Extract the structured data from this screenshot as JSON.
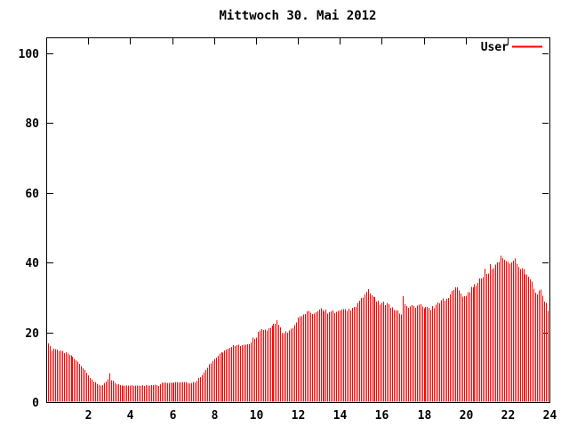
{
  "title": "Mittwoch 30. Mai 2012",
  "legend": {
    "label": "User",
    "color": "#ff0000",
    "position": "top-right"
  },
  "colors": {
    "background": "#ffffff",
    "bar": "#ff0000",
    "axis": "#000000",
    "text": "#000000"
  },
  "chart_data": {
    "type": "bar",
    "style": "impulses",
    "title": "Mittwoch 30. Mai 2012",
    "xlabel": "",
    "ylabel": "",
    "xlim": [
      0,
      24
    ],
    "ylim": [
      0,
      104
    ],
    "x_ticks": [
      2,
      4,
      6,
      8,
      10,
      12,
      14,
      16,
      18,
      20,
      22,
      24
    ],
    "y_ticks": [
      0,
      20,
      40,
      60,
      80,
      100
    ],
    "grid": false,
    "legend_position": "top-right",
    "sample_interval_minutes": 5,
    "series": [
      {
        "name": "User",
        "color": "#ff0000",
        "points": [
          [
            0.08,
            17.0
          ],
          [
            0.17,
            15.8
          ],
          [
            0.25,
            14.6
          ],
          [
            0.33,
            15.0
          ],
          [
            0.42,
            15.2
          ],
          [
            0.5,
            15.0
          ],
          [
            0.58,
            14.7
          ],
          [
            0.67,
            15.0
          ],
          [
            0.75,
            14.8
          ],
          [
            0.83,
            14.3
          ],
          [
            0.92,
            14.1
          ],
          [
            1.0,
            14.0
          ],
          [
            1.17,
            13.2
          ],
          [
            1.33,
            12.4
          ],
          [
            1.5,
            11.5
          ],
          [
            1.67,
            10.2
          ],
          [
            1.83,
            9.3
          ],
          [
            1.92,
            8.5
          ],
          [
            2.0,
            7.5
          ],
          [
            2.08,
            6.9
          ],
          [
            2.17,
            6.4
          ],
          [
            2.25,
            6.0
          ],
          [
            2.33,
            5.8
          ],
          [
            2.42,
            5.2
          ],
          [
            2.5,
            4.9
          ],
          [
            2.58,
            4.8
          ],
          [
            2.67,
            4.9
          ],
          [
            2.75,
            5.4
          ],
          [
            2.83,
            5.9
          ],
          [
            2.92,
            6.6
          ],
          [
            3.0,
            8.5
          ],
          [
            3.08,
            6.4
          ],
          [
            3.17,
            6.0
          ],
          [
            3.25,
            5.5
          ],
          [
            3.33,
            5.2
          ],
          [
            3.42,
            5.0
          ],
          [
            3.5,
            4.8
          ],
          [
            3.58,
            4.7
          ],
          [
            4.0,
            4.7
          ],
          [
            4.5,
            4.7
          ],
          [
            5.0,
            4.7
          ],
          [
            5.08,
            4.8
          ],
          [
            5.17,
            4.9
          ],
          [
            5.25,
            4.8
          ],
          [
            5.33,
            4.7
          ],
          [
            5.42,
            5.0
          ],
          [
            5.5,
            5.5
          ],
          [
            5.58,
            5.6
          ],
          [
            6.0,
            5.6
          ],
          [
            6.5,
            5.7
          ],
          [
            6.67,
            5.6
          ],
          [
            6.83,
            5.5
          ],
          [
            7.0,
            5.6
          ],
          [
            7.08,
            5.8
          ],
          [
            7.17,
            6.2
          ],
          [
            7.25,
            6.7
          ],
          [
            7.33,
            7.2
          ],
          [
            7.42,
            7.8
          ],
          [
            7.5,
            8.5
          ],
          [
            7.58,
            9.2
          ],
          [
            7.67,
            9.9
          ],
          [
            7.75,
            10.6
          ],
          [
            7.83,
            11.3
          ],
          [
            7.92,
            11.9
          ],
          [
            8.0,
            12.4
          ],
          [
            8.17,
            13.4
          ],
          [
            8.33,
            14.1
          ],
          [
            8.5,
            14.7
          ],
          [
            8.67,
            15.2
          ],
          [
            8.83,
            15.9
          ],
          [
            9.0,
            16.2
          ],
          [
            9.25,
            16.3
          ],
          [
            9.5,
            16.4
          ],
          [
            9.67,
            16.7
          ],
          [
            9.75,
            17.0
          ],
          [
            9.83,
            18.3
          ],
          [
            10.0,
            18.6
          ],
          [
            10.08,
            20.5
          ],
          [
            10.25,
            20.9
          ],
          [
            10.5,
            20.8
          ],
          [
            10.67,
            21.5
          ],
          [
            10.83,
            22.3
          ],
          [
            11.0,
            23.1
          ],
          [
            11.08,
            22.4
          ],
          [
            11.17,
            21.0
          ],
          [
            11.25,
            19.8
          ],
          [
            11.33,
            19.5
          ],
          [
            11.42,
            20.0
          ],
          [
            11.5,
            20.3
          ],
          [
            11.67,
            21.0
          ],
          [
            11.83,
            22.2
          ],
          [
            11.92,
            23.2
          ],
          [
            12.0,
            23.9
          ],
          [
            12.17,
            24.7
          ],
          [
            12.33,
            25.3
          ],
          [
            12.5,
            25.6
          ],
          [
            12.75,
            25.7
          ],
          [
            13.0,
            26.3
          ],
          [
            13.08,
            27.3
          ],
          [
            13.17,
            26.8
          ],
          [
            13.25,
            26.2
          ],
          [
            13.42,
            25.8
          ],
          [
            13.58,
            25.8
          ],
          [
            13.83,
            26.0
          ],
          [
            14.0,
            26.0
          ],
          [
            14.25,
            26.3
          ],
          [
            14.5,
            26.7
          ],
          [
            14.75,
            27.2
          ],
          [
            14.83,
            28.0
          ],
          [
            14.92,
            29.0
          ],
          [
            15.0,
            30.2
          ],
          [
            15.08,
            29.6
          ],
          [
            15.17,
            31.0
          ],
          [
            15.25,
            32.0
          ],
          [
            15.33,
            31.8
          ],
          [
            15.42,
            31.0
          ],
          [
            15.5,
            30.5
          ],
          [
            15.67,
            29.8
          ],
          [
            15.75,
            28.8
          ],
          [
            15.92,
            28.3
          ],
          [
            16.08,
            28.3
          ],
          [
            16.25,
            28.0
          ],
          [
            16.42,
            27.3
          ],
          [
            16.5,
            27.7
          ],
          [
            16.58,
            26.8
          ],
          [
            16.75,
            25.8
          ],
          [
            16.92,
            24.9
          ],
          [
            17.0,
            30.2
          ],
          [
            17.08,
            28.5
          ],
          [
            17.17,
            27.5
          ],
          [
            17.25,
            27.0
          ],
          [
            17.42,
            27.5
          ],
          [
            17.58,
            27.1
          ],
          [
            17.75,
            28.0
          ],
          [
            17.92,
            27.2
          ],
          [
            18.0,
            27.0
          ],
          [
            18.17,
            26.9
          ],
          [
            18.33,
            26.8
          ],
          [
            18.5,
            27.4
          ],
          [
            18.67,
            28.3
          ],
          [
            18.83,
            29.2
          ],
          [
            18.92,
            29.4
          ],
          [
            19.0,
            29.5
          ],
          [
            19.17,
            30.0
          ],
          [
            19.33,
            31.5
          ],
          [
            19.5,
            33.0
          ],
          [
            19.58,
            32.5
          ],
          [
            19.67,
            31.5
          ],
          [
            19.83,
            30.8
          ],
          [
            20.0,
            31.0
          ],
          [
            20.17,
            32.0
          ],
          [
            20.33,
            33.0
          ],
          [
            20.5,
            33.8
          ],
          [
            20.67,
            34.8
          ],
          [
            20.83,
            35.8
          ],
          [
            20.92,
            38.4
          ],
          [
            21.0,
            36.2
          ],
          [
            21.08,
            37.0
          ],
          [
            21.17,
            39.0
          ],
          [
            21.25,
            37.8
          ],
          [
            21.33,
            38.5
          ],
          [
            21.5,
            40.2
          ],
          [
            21.67,
            41.5
          ],
          [
            21.75,
            41.2
          ],
          [
            21.83,
            40.6
          ],
          [
            22.0,
            39.8
          ],
          [
            22.17,
            40.3
          ],
          [
            22.25,
            41.0
          ],
          [
            22.33,
            40.8
          ],
          [
            22.42,
            39.6
          ],
          [
            22.5,
            39.2
          ],
          [
            22.67,
            38.3
          ],
          [
            22.83,
            37.0
          ],
          [
            23.0,
            35.4
          ],
          [
            23.08,
            35.0
          ],
          [
            23.17,
            34.6
          ],
          [
            23.25,
            33.0
          ],
          [
            23.33,
            31.0
          ],
          [
            23.42,
            30.5
          ],
          [
            23.5,
            31.5
          ],
          [
            23.58,
            32.3
          ],
          [
            23.67,
            30.0
          ],
          [
            23.75,
            29.0
          ],
          [
            23.83,
            28.3
          ],
          [
            23.92,
            26.0
          ],
          [
            24.0,
            23.3
          ]
        ]
      }
    ]
  }
}
